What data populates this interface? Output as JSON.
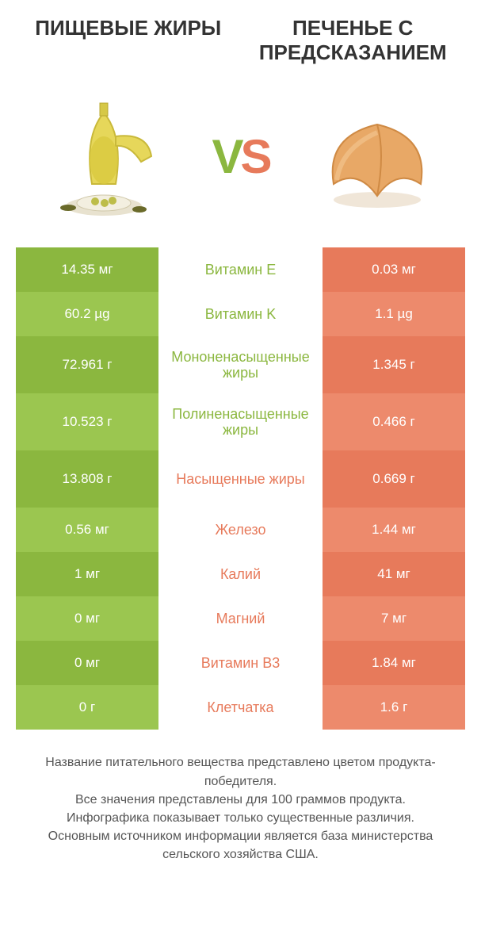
{
  "header": {
    "left_title": "ПИЩЕВЫЕ ЖИРЫ",
    "right_title": "ПЕЧЕНЬЕ С ПРЕДСКАЗАНИЕМ"
  },
  "vs": {
    "v": "V",
    "s": "S"
  },
  "colors": {
    "left_dark": "#8bb73f",
    "left_light": "#9bc650",
    "right_dark": "#e77a5b",
    "right_light": "#ed8a6c",
    "text_green": "#8bb73f",
    "text_orange": "#e77a5b",
    "body_text": "#555555"
  },
  "rows": [
    {
      "left": "14.35 мг",
      "mid": "Витамин E",
      "right": "0.03 мг",
      "winner": "left",
      "tall": false
    },
    {
      "left": "60.2 µg",
      "mid": "Витамин K",
      "right": "1.1 µg",
      "winner": "left",
      "tall": false
    },
    {
      "left": "72.961 г",
      "mid": "Мононенасыщенные жиры",
      "right": "1.345 г",
      "winner": "left",
      "tall": true
    },
    {
      "left": "10.523 г",
      "mid": "Полиненасыщенные жиры",
      "right": "0.466 г",
      "winner": "left",
      "tall": true
    },
    {
      "left": "13.808 г",
      "mid": "Насыщенные жиры",
      "right": "0.669 г",
      "winner": "right",
      "tall": true
    },
    {
      "left": "0.56 мг",
      "mid": "Железо",
      "right": "1.44 мг",
      "winner": "right",
      "tall": false
    },
    {
      "left": "1 мг",
      "mid": "Калий",
      "right": "41 мг",
      "winner": "right",
      "tall": false
    },
    {
      "left": "0 мг",
      "mid": "Магний",
      "right": "7 мг",
      "winner": "right",
      "tall": false
    },
    {
      "left": "0 мг",
      "mid": "Витамин B3",
      "right": "1.84 мг",
      "winner": "right",
      "tall": false
    },
    {
      "left": "0 г",
      "mid": "Клетчатка",
      "right": "1.6 г",
      "winner": "right",
      "tall": false
    }
  ],
  "footer": {
    "line1": "Название питательного вещества представлено цветом продукта-победителя.",
    "line2": "Все значения представлены для 100 граммов продукта.",
    "line3": "Инфографика показывает только существенные различия.",
    "line4": "Основным источником информации является база министерства сельского хозяйства США."
  }
}
